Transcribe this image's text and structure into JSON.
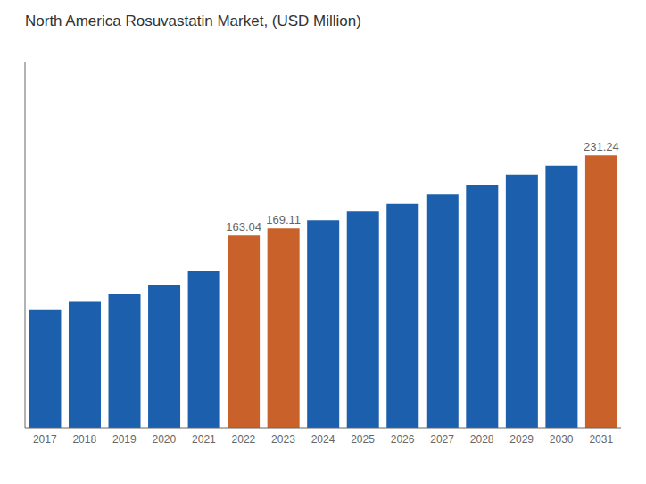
{
  "chart_data": {
    "type": "bar",
    "title": "North America Rosuvastatin Market, (USD Million)",
    "categories": [
      "2017",
      "2018",
      "2019",
      "2020",
      "2021",
      "2022",
      "2023",
      "2024",
      "2025",
      "2026",
      "2027",
      "2028",
      "2029",
      "2030",
      "2031"
    ],
    "values": [
      100.0,
      107.0,
      113.5,
      121.0,
      133.0,
      163.04,
      169.11,
      176.0,
      183.5,
      190.0,
      198.0,
      206.5,
      215.0,
      222.5,
      231.24
    ],
    "colors": [
      "#1B5FAD",
      "#1B5FAD",
      "#1B5FAD",
      "#1B5FAD",
      "#1B5FAD",
      "#C9612A",
      "#C9612A",
      "#1B5FAD",
      "#1B5FAD",
      "#1B5FAD",
      "#1B5FAD",
      "#1B5FAD",
      "#1B5FAD",
      "#1B5FAD",
      "#C9612A"
    ],
    "annotations": [
      {
        "x": "2022",
        "text": "163.04"
      },
      {
        "x": "2023",
        "text": "169.11"
      },
      {
        "x": "2031",
        "text": "231.24"
      }
    ],
    "ylim": [
      0,
      310
    ],
    "grid": false,
    "tick_labels": "x"
  }
}
